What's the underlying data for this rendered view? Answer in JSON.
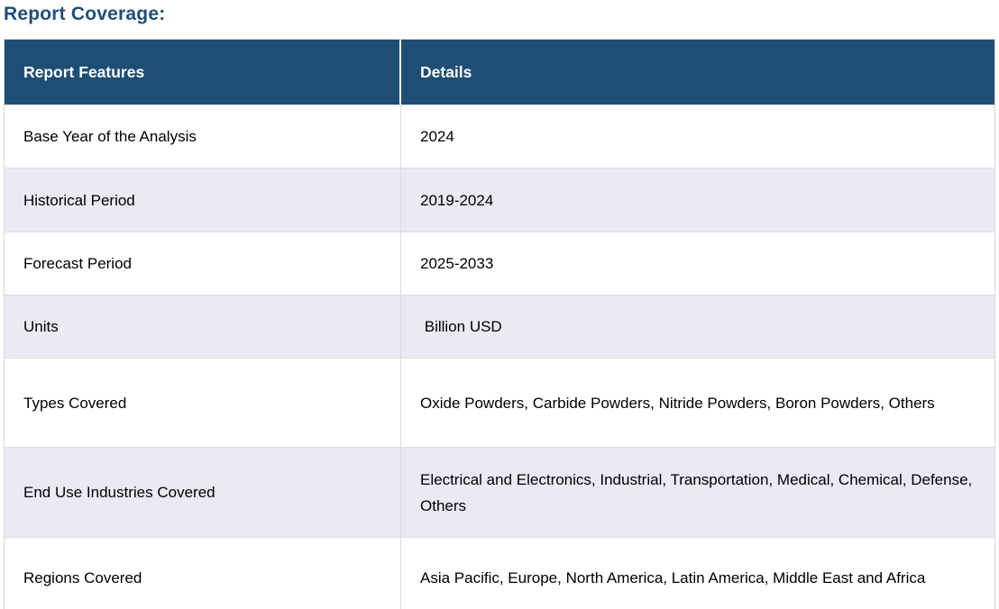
{
  "page": {
    "title": "Report Coverage:"
  },
  "table": {
    "headers": {
      "feature": "Report Features",
      "detail": "Details"
    },
    "rows": [
      {
        "feature": "Base Year of the Analysis",
        "detail": "2024"
      },
      {
        "feature": "Historical Period",
        "detail": "2019-2024"
      },
      {
        "feature": "Forecast Period",
        "detail": "2025-2033"
      },
      {
        "feature": "Units",
        "detail": " Billion USD"
      },
      {
        "feature": "Types Covered",
        "detail": "Oxide Powders, Carbide Powders, Nitride Powders, Boron Powders, Others"
      },
      {
        "feature": "End Use Industries Covered",
        "detail": "Electrical and Electronics, Industrial, Transportation, Medical, Chemical, Defense, Others"
      },
      {
        "feature": "Regions Covered",
        "detail": "Asia Pacific, Europe, North America, Latin America, Middle East and Africa"
      }
    ],
    "colors": {
      "header_background": "#1F4E74",
      "title_text": "#1F4E79",
      "zebra_row_background": "#E9EAF4",
      "border": "#D6D6D6",
      "header_text": "#FFFFFF",
      "body_text": "#000000"
    }
  }
}
